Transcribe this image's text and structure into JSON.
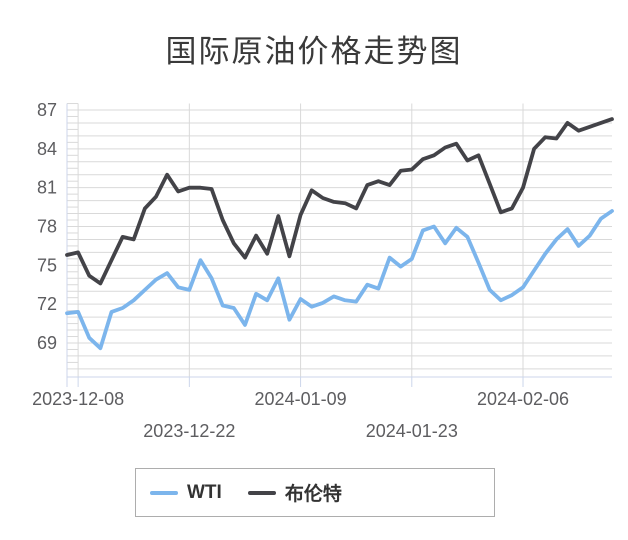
{
  "title": "国际原油价格走势图",
  "colors": {
    "wti": "#7cb5ec",
    "brent": "#434348",
    "gridline": "#d9d9d9",
    "axis_line": "#ccd6eb",
    "tick_label": "#5d5d60",
    "title_text": "#3a3a3a",
    "legend_text": "#333333",
    "legend_border": "#adadad",
    "background": "#ffffff"
  },
  "legend": {
    "items": [
      {
        "label": "WTI",
        "color": "#7cb5ec"
      },
      {
        "label": "布伦特",
        "color": "#434348"
      }
    ]
  },
  "chart_data": {
    "type": "line",
    "title": "国际原油价格走势图",
    "xlabel": "",
    "ylabel": "",
    "ylim": [
      66.4,
      87.6
    ],
    "y_ticks": [
      69,
      72,
      75,
      78,
      81,
      84,
      87
    ],
    "y_minor_grid_interval": 1,
    "grid": "on",
    "legend_position": "bottom",
    "x_tick_labels": [
      "2023-12-08",
      "2023-12-22",
      "2024-01-09",
      "2024-01-23",
      "2024-02-06"
    ],
    "x_tick_indices": [
      1,
      11,
      21,
      31,
      41
    ],
    "series": [
      {
        "name": "WTI",
        "color": "#7cb5ec",
        "values": [
          71.3,
          71.4,
          69.4,
          68.6,
          71.4,
          71.7,
          72.3,
          73.1,
          73.9,
          74.4,
          73.3,
          73.1,
          75.4,
          74.0,
          71.9,
          71.7,
          70.4,
          72.8,
          72.3,
          74.0,
          70.8,
          72.4,
          71.8,
          72.1,
          72.6,
          72.3,
          72.2,
          73.5,
          73.2,
          75.6,
          74.9,
          75.5,
          77.7,
          78.0,
          76.7,
          77.9,
          77.2,
          75.2,
          73.1,
          72.3,
          72.7,
          73.3,
          74.6,
          75.9,
          77.0,
          77.8,
          76.5,
          77.3,
          78.6,
          79.2
        ]
      },
      {
        "name": "布伦特",
        "color": "#434348",
        "values": [
          75.8,
          76.0,
          74.2,
          73.6,
          75.4,
          77.2,
          77.0,
          79.4,
          80.3,
          82.0,
          80.7,
          81.0,
          81.0,
          80.9,
          78.5,
          76.7,
          75.6,
          77.3,
          75.9,
          78.8,
          75.7,
          78.9,
          80.8,
          80.2,
          79.9,
          79.8,
          79.4,
          81.2,
          81.5,
          81.2,
          82.3,
          82.4,
          83.2,
          83.5,
          84.1,
          84.4,
          83.1,
          83.5,
          81.3,
          79.1,
          79.4,
          81.0,
          84.0,
          84.9,
          84.8,
          86.0,
          85.4,
          85.7,
          86.0,
          86.3
        ]
      }
    ]
  }
}
